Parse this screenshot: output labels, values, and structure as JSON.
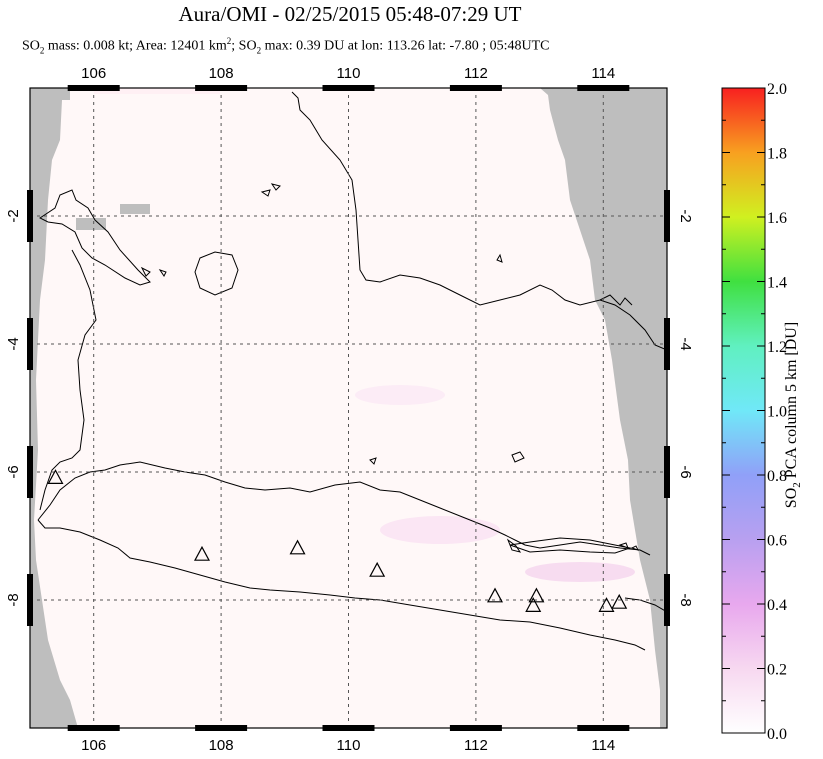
{
  "title": "Aura/OMI - 02/25/2015 05:48-07:29 UT",
  "subtitle": {
    "so2_label": "SO",
    "so2_sub": "2",
    "mass_text": " mass: 0.008 kt; Area: 12401 km",
    "area_sup": "2",
    "max_text": "; SO",
    "max_sub": "2",
    "rest_text": " max: 0.39 DU at lon: 113.26 lat: -7.80 ; 05:48UTC"
  },
  "map": {
    "lon_ticks": [
      "106",
      "108",
      "110",
      "112",
      "114"
    ],
    "lat_ticks": [
      "-2",
      "-4",
      "-6",
      "-8"
    ],
    "lon_range": [
      105,
      115
    ],
    "lat_range": [
      -10,
      0
    ],
    "colors": {
      "nodata": "#bebebe",
      "background": "#fff8f8",
      "coast": "#000000",
      "grid": "#555555"
    },
    "volcanoes": [
      {
        "lon": 105.4,
        "lat": -6.1
      },
      {
        "lon": 107.7,
        "lat": -7.3
      },
      {
        "lon": 109.2,
        "lat": -7.2
      },
      {
        "lon": 110.45,
        "lat": -7.55
      },
      {
        "lon": 112.3,
        "lat": -7.95
      },
      {
        "lon": 112.95,
        "lat": -7.95
      },
      {
        "lon": 112.9,
        "lat": -8.1
      },
      {
        "lon": 114.05,
        "lat": -8.1
      },
      {
        "lon": 114.25,
        "lat": -8.05
      }
    ]
  },
  "colorbar": {
    "label_main": "SO",
    "label_sub": "2",
    "label_rest": " PCA column 5 km [DU]",
    "ticks": [
      "0.0",
      "0.2",
      "0.4",
      "0.6",
      "0.8",
      "1.0",
      "1.2",
      "1.4",
      "1.6",
      "1.8",
      "2.0"
    ],
    "range": [
      0,
      2
    ]
  }
}
